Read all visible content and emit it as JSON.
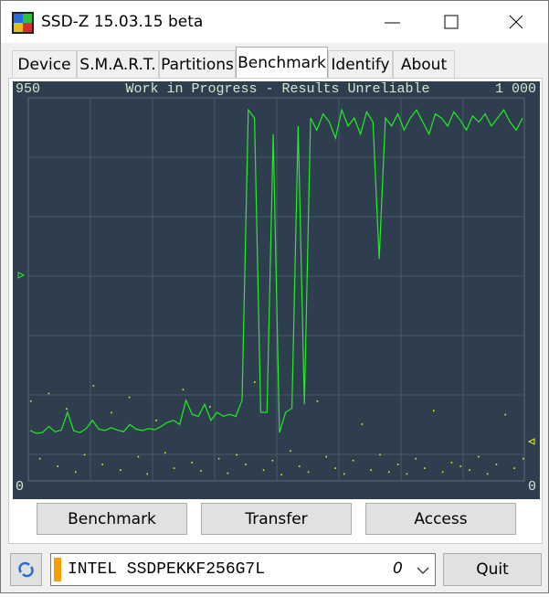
{
  "window": {
    "title": "SSD-Z 15.03.15 beta"
  },
  "tabs": [
    "Device",
    "S.M.A.R.T.",
    "Partitions",
    "Benchmark",
    "Identify",
    "About"
  ],
  "active_tab": 3,
  "chart_data": {
    "type": "line",
    "title": "Work in Progress - Results Unreliable",
    "ylim": [
      0,
      950
    ],
    "yticks": [
      0,
      950
    ],
    "y2lim": [
      0,
      1000
    ],
    "y2ticks": [
      0,
      {
        "value": 1000,
        "label": "1 000"
      }
    ],
    "series": [
      {
        "color": "#22ee22",
        "values": [
          125,
          118,
          120,
          135,
          122,
          126,
          170,
          124,
          120,
          130,
          150,
          128,
          125,
          132,
          126,
          122,
          140,
          128,
          125,
          130,
          127,
          135,
          145,
          150,
          140,
          200,
          165,
          160,
          190,
          150,
          170,
          160,
          165,
          160,
          200,
          920,
          900,
          170,
          170,
          860,
          120,
          170,
          180,
          880,
          190,
          900,
          870,
          910,
          890,
          850,
          920,
          880,
          900,
          860,
          915,
          890,
          550,
          900,
          880,
          910,
          870,
          900,
          920,
          890,
          860,
          910,
          900,
          880,
          915,
          895,
          870,
          905,
          890,
          910,
          880,
          900,
          920,
          890,
          870,
          900
        ]
      },
      {
        "color": "#e8f020",
        "axis": "y2",
        "values": [
          210,
          60,
          230,
          40,
          190,
          25,
          70,
          250,
          45,
          180,
          30,
          220,
          65,
          20,
          160,
          75,
          35,
          240,
          50,
          28,
          195,
          60,
          22,
          70,
          45,
          260,
          30,
          55,
          18,
          80,
          40,
          25,
          210,
          65,
          35,
          20,
          55,
          150,
          30,
          70,
          25,
          45,
          20,
          60,
          35,
          185,
          25,
          50,
          40,
          30,
          65,
          20,
          45,
          175,
          35,
          60
        ]
      }
    ]
  },
  "buttons": [
    "Benchmark",
    "Transfer",
    "Access"
  ],
  "device": {
    "name": "INTEL SSDPEKKF256G7L",
    "index": "0"
  },
  "quit": "Quit"
}
